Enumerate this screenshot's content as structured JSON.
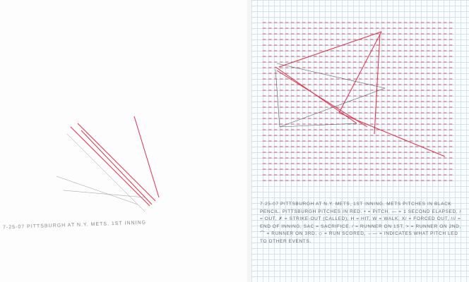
{
  "left_sheet": {
    "caption": "7-25-07 PITTSBURGH AT N.Y. METS, 1ST INNING"
  },
  "right_sheet": {
    "caption": "7-25-07 PITTSBURGH AT N.Y. METS, 1ST INNING. METS PITCHES IN BLACK PENCIL. PITTSBURGH PITCHES IN RED. • = PITCH, — = 1 SECOND ELAPSED, / = OUT, ✗ = STRIKE-OUT (CALLED), H = HIT, W = WALK, X/ = FORCED OUT, /// = END OF INNING, SAC = SACRIFICE, ⁄ = RUNNER ON 1ST, > = RUNNER ON 2ND, ⌒ = RUNNER ON 3RD, ◇ = RUN SCORED, ←— = INDICATES WHAT PITCH LED TO OTHER EVENTS."
  },
  "colors": {
    "red_ink": "#e0304a",
    "pencil": "#555555",
    "grid": "#cfe3ef"
  }
}
